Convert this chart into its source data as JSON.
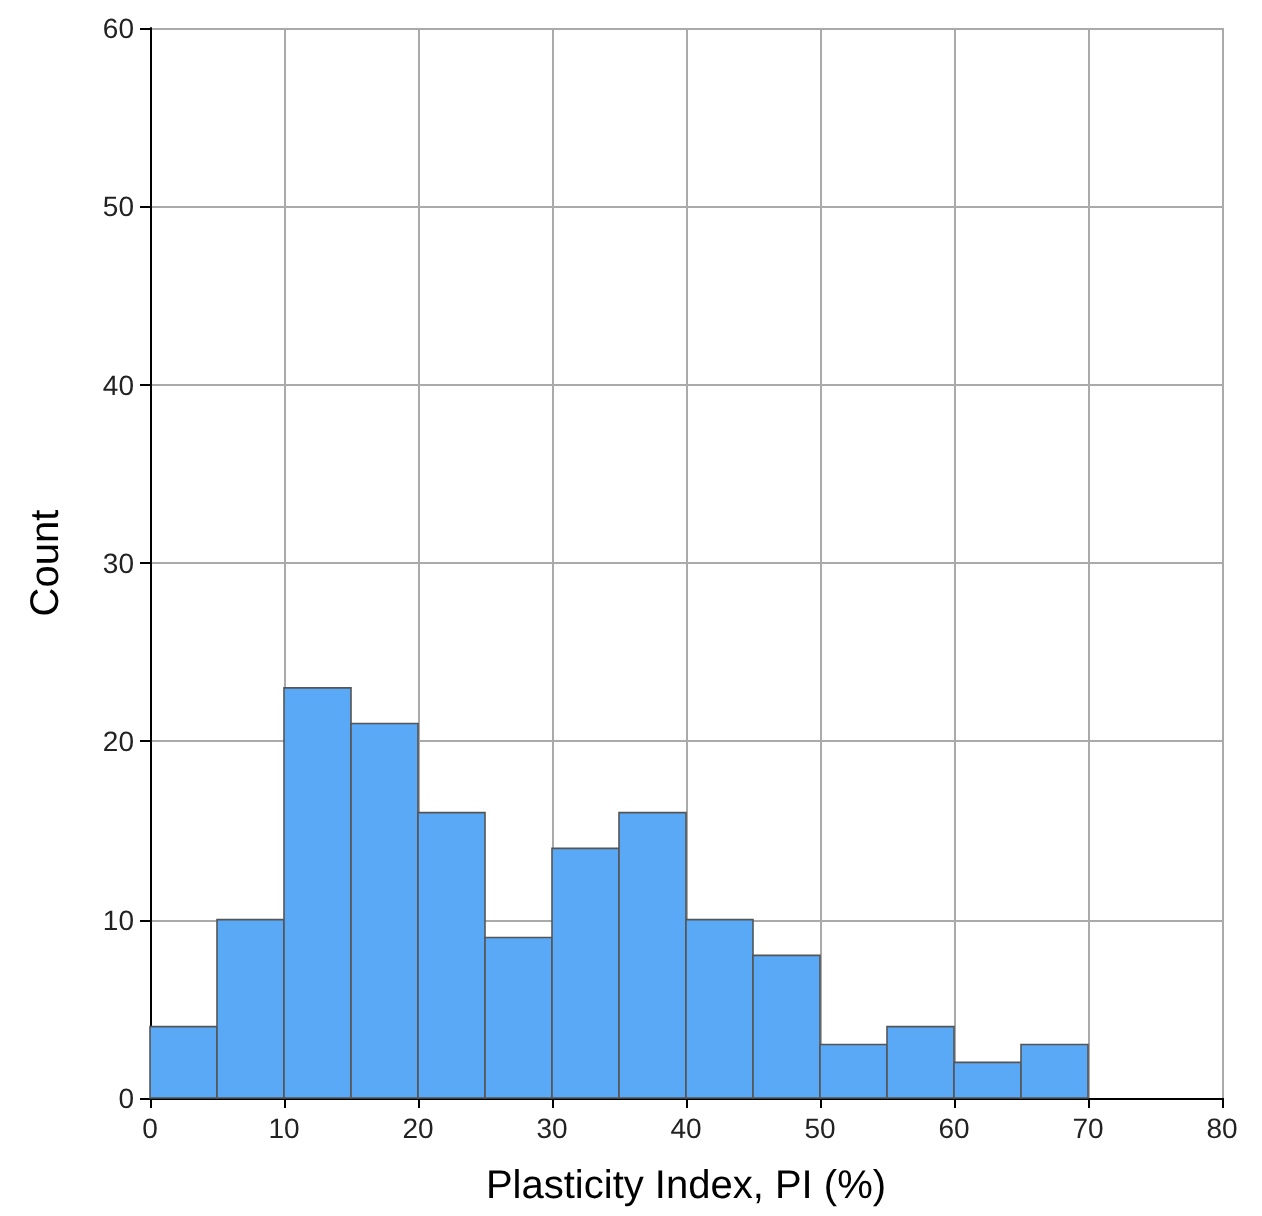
{
  "chart_data": {
    "type": "histogram",
    "xlabel": "Plasticity Index, PI (%)",
    "ylabel": "Count",
    "bins": [
      0,
      5,
      10,
      15,
      20,
      25,
      30,
      35,
      40,
      45,
      50,
      55,
      60,
      65,
      70
    ],
    "values": [
      4,
      10,
      23,
      21,
      16,
      9,
      14,
      16,
      10,
      8,
      3,
      4,
      2,
      3
    ],
    "color": "#5aa9f7",
    "xlim": [
      0,
      80
    ],
    "xticks": [
      0,
      10,
      20,
      30,
      40,
      50,
      60,
      70,
      80
    ],
    "ylim": [
      0,
      60
    ],
    "yticks": [
      0,
      10,
      20,
      30,
      40,
      50,
      60
    ],
    "grid": true
  }
}
